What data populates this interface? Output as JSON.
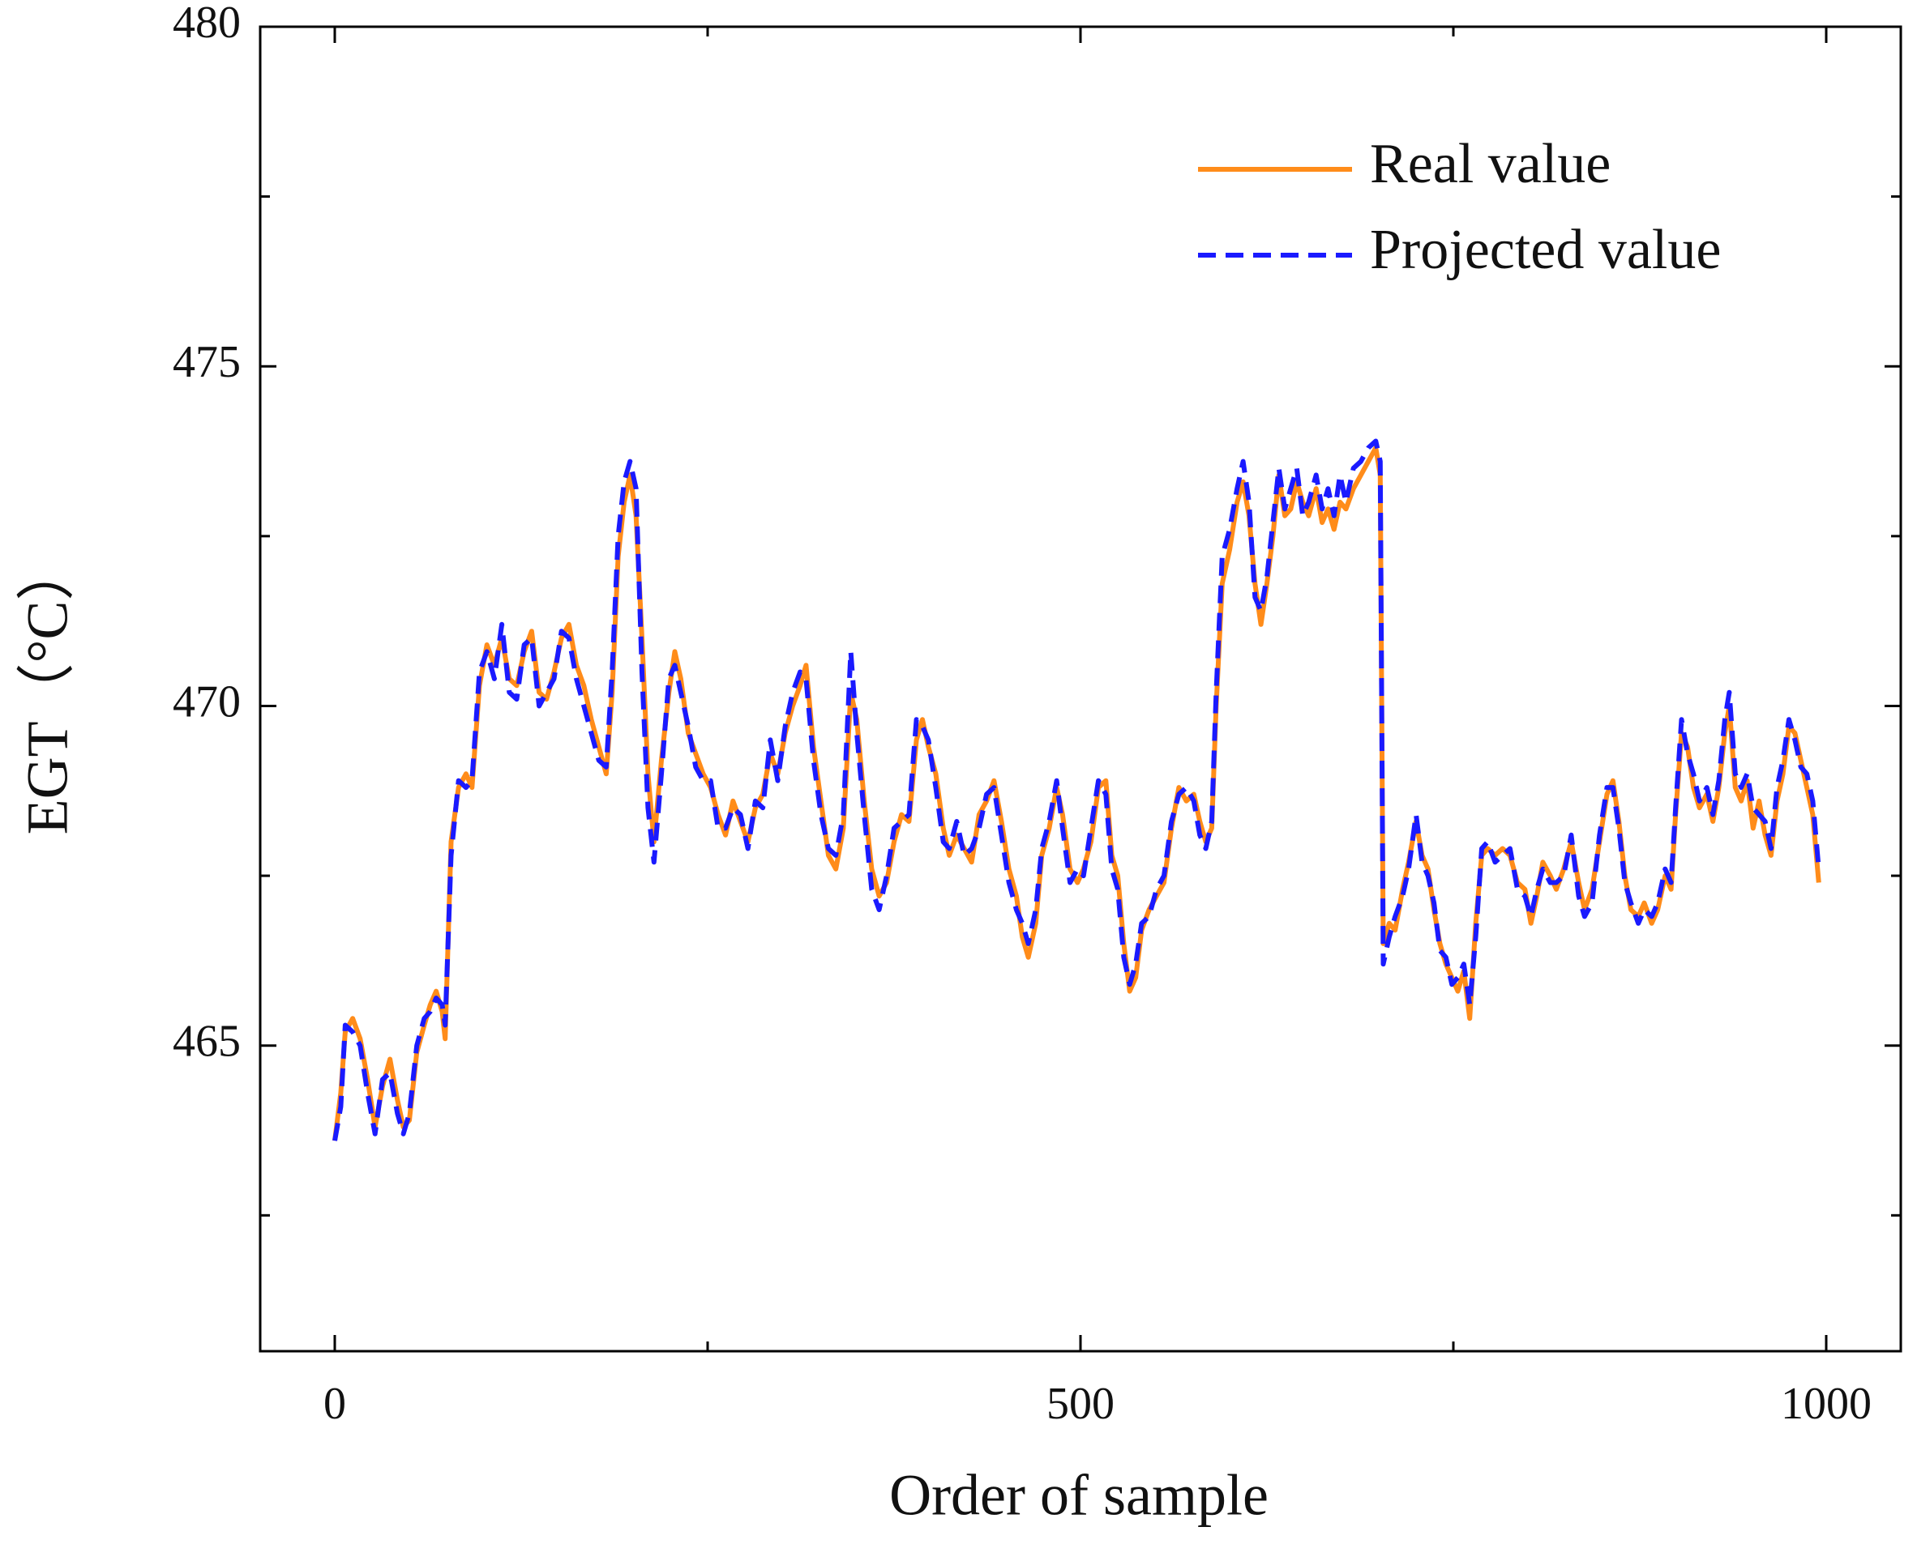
{
  "chart_data": {
    "type": "line",
    "xlabel": "Order of sample",
    "ylabel": "EGT（°C）",
    "xlim": [
      -50,
      1050
    ],
    "ylim": [
      460.5,
      480
    ],
    "xticks": [
      0,
      500,
      1000
    ],
    "yticks": [
      465,
      470,
      475,
      480
    ],
    "xminor": [
      250,
      750
    ],
    "yminor": [
      462.5,
      467.5,
      472.5,
      477.5
    ],
    "legend": "upper right",
    "x": [
      0,
      4,
      7,
      12,
      17,
      22,
      27,
      32,
      37,
      42,
      46,
      50,
      55,
      60,
      64,
      68,
      72,
      74,
      78,
      83,
      88,
      92,
      97,
      102,
      107,
      112,
      117,
      122,
      127,
      132,
      137,
      142,
      147,
      152,
      157,
      162,
      167,
      172,
      177,
      182,
      186,
      190,
      194,
      198,
      202,
      206,
      210,
      214,
      219,
      224,
      228,
      232,
      237,
      242,
      247,
      252,
      257,
      262,
      267,
      272,
      277,
      282,
      287,
      292,
      297,
      302,
      307,
      312,
      316,
      321,
      326,
      331,
      336,
      341,
      346,
      350,
      355,
      360,
      365,
      370,
      375,
      380,
      385,
      390,
      394,
      398,
      403,
      408,
      412,
      417,
      422,
      427,
      432,
      437,
      442,
      447,
      452,
      457,
      461,
      465,
      470,
      474,
      479,
      484,
      488,
      493,
      498,
      502,
      507,
      512,
      517,
      521,
      525,
      529,
      533,
      537,
      541,
      546,
      551,
      556,
      561,
      566,
      571,
      576,
      580,
      584,
      588,
      591,
      595,
      600,
      605,
      609,
      613,
      617,
      621,
      625,
      629,
      633,
      637,
      641,
      645,
      649,
      653,
      658,
      662,
      666,
      670,
      674,
      678,
      683,
      688,
      693,
      698,
      701,
      703,
      707,
      711,
      716,
      720,
      725,
      729,
      733,
      737,
      741,
      745,
      749,
      753,
      757,
      761,
      765,
      769,
      773,
      778,
      783,
      788,
      793,
      798,
      802,
      806,
      810,
      815,
      819,
      824,
      829,
      834,
      838,
      843,
      848,
      853,
      857,
      861,
      865,
      869,
      874,
      878,
      883,
      887,
      892,
      896,
      899,
      903,
      907,
      911,
      915,
      920,
      924,
      928,
      932,
      935,
      939,
      943,
      947,
      951,
      955,
      959,
      963,
      967,
      971,
      975,
      979,
      983,
      987,
      991,
      995
    ],
    "series": [
      {
        "name": "Real value",
        "color": "#ff8c1a",
        "style": "solid",
        "values": [
          463.6,
          464.3,
          465.2,
          465.4,
          465.1,
          464.5,
          463.8,
          464.4,
          464.8,
          464.2,
          463.8,
          463.9,
          464.9,
          465.3,
          465.6,
          465.8,
          465.5,
          465.1,
          468.0,
          468.8,
          469.0,
          468.8,
          470.3,
          470.9,
          470.6,
          471.0,
          470.4,
          470.3,
          470.8,
          471.1,
          470.2,
          470.1,
          470.5,
          471.0,
          471.2,
          470.6,
          470.3,
          469.8,
          469.4,
          469.0,
          470.2,
          472.2,
          473.0,
          473.4,
          472.8,
          471.0,
          469.0,
          468.0,
          469.2,
          470.2,
          470.8,
          470.4,
          469.6,
          469.3,
          469.0,
          468.8,
          468.4,
          468.1,
          468.6,
          468.3,
          468.0,
          468.5,
          468.7,
          469.3,
          469.0,
          469.6,
          470.0,
          470.3,
          470.6,
          469.4,
          468.6,
          467.8,
          467.6,
          468.2,
          470.2,
          469.8,
          468.6,
          467.6,
          467.2,
          467.4,
          468.0,
          468.4,
          468.3,
          469.5,
          469.8,
          469.4,
          469.0,
          468.2,
          467.8,
          468.1,
          467.9,
          467.7,
          468.4,
          468.6,
          468.9,
          468.3,
          467.6,
          467.2,
          466.6,
          466.3,
          466.8,
          467.8,
          468.2,
          468.8,
          468.4,
          467.6,
          467.4,
          467.6,
          468.0,
          468.8,
          468.9,
          467.8,
          467.5,
          466.5,
          465.8,
          466.0,
          466.7,
          467.0,
          467.2,
          467.4,
          468.2,
          468.8,
          468.6,
          468.7,
          468.3,
          468.0,
          468.2,
          470.0,
          471.8,
          472.3,
          473.0,
          473.3,
          472.8,
          471.8,
          471.2,
          471.8,
          472.5,
          473.4,
          472.8,
          472.9,
          473.3,
          473.0,
          472.8,
          473.2,
          472.7,
          472.9,
          472.6,
          473.0,
          472.9,
          473.2,
          473.4,
          473.6,
          473.8,
          473.4,
          466.5,
          466.8,
          466.7,
          467.3,
          467.7,
          468.3,
          467.8,
          467.6,
          467.0,
          466.5,
          466.2,
          466.0,
          465.8,
          466.1,
          465.4,
          466.8,
          467.8,
          467.9,
          467.8,
          467.9,
          467.8,
          467.4,
          467.3,
          466.8,
          467.2,
          467.7,
          467.5,
          467.3,
          467.6,
          468.0,
          467.4,
          467.0,
          467.3,
          468.0,
          468.7,
          468.9,
          468.3,
          467.5,
          467.0,
          466.9,
          467.1,
          466.8,
          467.0,
          467.5,
          467.3,
          468.4,
          469.6,
          469.4,
          468.8,
          468.5,
          468.7,
          468.3,
          468.8,
          469.6,
          470.0,
          468.8,
          468.6,
          468.9,
          468.2,
          468.6,
          468.1,
          467.8,
          468.6,
          469.0,
          469.7,
          469.6,
          469.2,
          468.8,
          468.4,
          467.4
        ]
      },
      {
        "name": "Projected value",
        "color": "#1a1aff",
        "style": "dashed",
        "values": [
          463.6,
          464.1,
          465.3,
          465.2,
          465.0,
          464.3,
          463.7,
          464.5,
          464.6,
          464.0,
          463.7,
          464.0,
          465.0,
          465.4,
          465.5,
          465.7,
          465.6,
          465.3,
          467.8,
          468.9,
          468.8,
          468.9,
          470.5,
          470.8,
          470.4,
          471.2,
          470.2,
          470.1,
          470.9,
          471.0,
          470.0,
          470.2,
          470.4,
          471.1,
          471.0,
          470.4,
          470.0,
          469.6,
          469.2,
          469.1,
          470.5,
          472.5,
          473.3,
          473.6,
          473.2,
          470.5,
          468.5,
          467.7,
          469.0,
          470.4,
          470.6,
          470.2,
          469.7,
          469.1,
          468.9,
          468.9,
          468.2,
          468.2,
          468.5,
          468.4,
          467.9,
          468.6,
          468.5,
          469.5,
          468.9,
          469.7,
          470.2,
          470.5,
          470.4,
          469.2,
          468.4,
          467.9,
          467.8,
          468.4,
          470.8,
          469.6,
          468.4,
          467.3,
          467.0,
          467.5,
          468.2,
          468.3,
          468.4,
          469.8,
          469.7,
          469.5,
          468.8,
          468.0,
          467.9,
          468.3,
          467.8,
          467.9,
          468.2,
          468.7,
          468.8,
          468.1,
          467.4,
          467.0,
          466.8,
          466.5,
          467.0,
          467.9,
          468.3,
          468.9,
          468.2,
          467.4,
          467.6,
          467.5,
          468.2,
          468.9,
          468.7,
          467.6,
          467.3,
          466.3,
          465.9,
          466.2,
          466.8,
          466.9,
          467.3,
          467.5,
          468.3,
          468.7,
          468.8,
          468.6,
          468.1,
          467.9,
          468.3,
          470.2,
          472.2,
          472.6,
          473.2,
          473.6,
          473.0,
          471.6,
          471.4,
          471.9,
          472.7,
          473.5,
          472.9,
          473.2,
          473.5,
          472.8,
          473.0,
          473.4,
          472.9,
          473.2,
          472.8,
          473.4,
          473.0,
          473.5,
          473.6,
          473.8,
          473.9,
          473.6,
          466.2,
          466.6,
          466.9,
          467.2,
          467.6,
          468.4,
          467.7,
          467.5,
          467.1,
          466.4,
          466.3,
          465.9,
          466.0,
          466.2,
          465.6,
          466.6,
          467.9,
          468.0,
          467.7,
          467.8,
          467.9,
          467.3,
          467.2,
          466.9,
          467.3,
          467.6,
          467.4,
          467.4,
          467.5,
          468.1,
          467.2,
          466.9,
          467.1,
          468.1,
          468.8,
          468.8,
          468.2,
          467.4,
          467.1,
          466.8,
          467.0,
          466.9,
          467.1,
          467.6,
          467.4,
          468.5,
          469.8,
          469.3,
          469.0,
          468.6,
          468.8,
          468.4,
          468.9,
          469.8,
          470.2,
          469.0,
          468.8,
          469.0,
          468.5,
          468.4,
          468.3,
          467.9,
          468.8,
          469.2,
          469.8,
          469.5,
          469.1,
          469.0,
          468.6,
          467.6
        ]
      }
    ]
  }
}
